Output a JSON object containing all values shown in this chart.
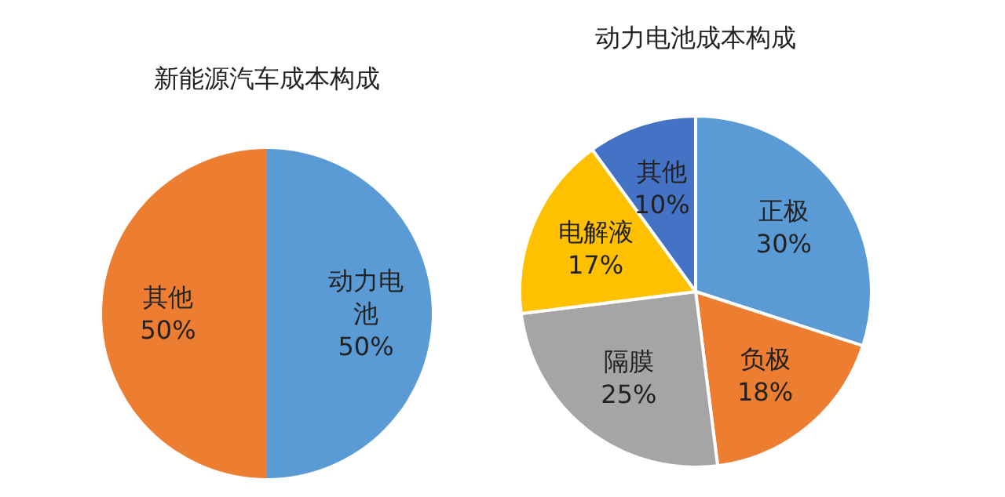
{
  "chart_data": [
    {
      "type": "pie",
      "title": "新能源汽车成本构成",
      "categories": [
        "动力电池",
        "其他"
      ],
      "values": [
        50,
        50
      ],
      "colors": [
        "#5b9bd5",
        "#ed7d31"
      ],
      "value_labels": [
        "50%",
        "50%"
      ]
    },
    {
      "type": "pie",
      "title": "动力电池成本构成",
      "categories": [
        "正极",
        "负极",
        "隔膜",
        "电解液",
        "其他"
      ],
      "values": [
        30,
        18,
        25,
        17,
        10
      ],
      "colors": [
        "#5b9bd5",
        "#ed7d31",
        "#a5a5a5",
        "#ffc000",
        "#4472c4"
      ],
      "value_labels": [
        "30%",
        "18%",
        "25%",
        "17%",
        "10%"
      ]
    }
  ]
}
